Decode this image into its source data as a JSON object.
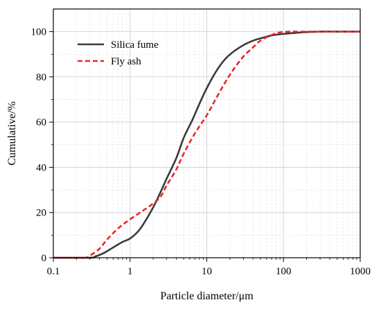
{
  "chart_data": {
    "type": "line",
    "title": "",
    "xlabel": "Particle diameter/μm",
    "ylabel": "Cumulative/%",
    "x_scale": "log",
    "xlim": [
      0.1,
      1000
    ],
    "ylim": [
      0,
      110
    ],
    "x_ticks": [
      "0.1",
      "1",
      "10",
      "100",
      "1000"
    ],
    "y_ticks": [
      "0",
      "20",
      "40",
      "60",
      "80",
      "100"
    ],
    "grid": true,
    "legend": "top-left",
    "series": [
      {
        "name": "Silica fume",
        "color": "#3a3a3a",
        "style": "solid",
        "x": [
          0.1,
          0.3,
          0.35,
          0.45,
          0.6,
          0.8,
          1.0,
          1.3,
          1.7,
          2.2,
          3.0,
          4.0,
          5.0,
          6.5,
          8.0,
          10,
          13,
          17,
          22,
          30,
          40,
          50,
          70,
          100,
          150,
          200,
          300,
          500,
          1000
        ],
        "y": [
          0,
          0,
          0.5,
          2,
          4.5,
          7,
          8.5,
          12,
          18,
          25,
          35,
          44,
          53,
          61,
          68,
          75,
          82,
          87.5,
          91,
          94,
          96,
          97,
          98.3,
          99,
          99.5,
          99.8,
          100,
          100,
          100
        ]
      },
      {
        "name": "Fly ash",
        "color": "#e8262b",
        "style": "dashed",
        "x": [
          0.1,
          0.25,
          0.3,
          0.4,
          0.5,
          0.7,
          1.0,
          1.5,
          2.0,
          2.5,
          3.0,
          4.0,
          5.0,
          7.0,
          10,
          13,
          17,
          22,
          30,
          40,
          50,
          70,
          90,
          120,
          150,
          200,
          300,
          500,
          1000
        ],
        "y": [
          0,
          0,
          1,
          4,
          8,
          13,
          17,
          21,
          24,
          27,
          32,
          39,
          46,
          55,
          63,
          70,
          77,
          83,
          89,
          93,
          96,
          98.5,
          99.7,
          100,
          100,
          100,
          100,
          100,
          100
        ]
      }
    ]
  }
}
